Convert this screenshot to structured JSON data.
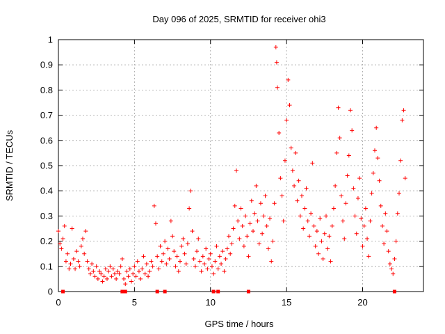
{
  "chart_data": {
    "type": "scatter",
    "title": "Day 096 of 2025, SRMTID for receiver ohi3",
    "xlabel": "GPS time / hours",
    "ylabel": "SRMTID / TECUs",
    "xlim": [
      0,
      24
    ],
    "ylim": [
      0,
      1
    ],
    "xticks": [
      0,
      5,
      10,
      15,
      20
    ],
    "xtick_labels": [
      "0",
      "5",
      "10",
      "15",
      "20"
    ],
    "yticks": [
      0,
      0.1,
      0.2,
      0.3,
      0.4,
      0.5,
      0.6,
      0.7,
      0.8,
      0.9,
      1
    ],
    "ytick_labels": [
      "0",
      "0.1",
      "0.2",
      "0.3",
      "0.4",
      "0.5",
      "0.6",
      "0.7",
      "0.8",
      "0.9",
      "1"
    ],
    "grid": true,
    "marker": "plus",
    "color": "#ff0000",
    "series": [
      {
        "name": "SRMTID",
        "points": [
          [
            0.0,
            0.24
          ],
          [
            0.1,
            0.19
          ],
          [
            0.2,
            0.17
          ],
          [
            0.3,
            0.21
          ],
          [
            0.4,
            0.26
          ],
          [
            0.5,
            0.12
          ],
          [
            0.6,
            0.15
          ],
          [
            0.7,
            0.09
          ],
          [
            0.8,
            0.11
          ],
          [
            0.9,
            0.25
          ],
          [
            1.0,
            0.13
          ],
          [
            1.1,
            0.09
          ],
          [
            1.2,
            0.16
          ],
          [
            1.3,
            0.12
          ],
          [
            1.4,
            0.1
          ],
          [
            1.5,
            0.18
          ],
          [
            1.6,
            0.21
          ],
          [
            1.7,
            0.15
          ],
          [
            1.8,
            0.24
          ],
          [
            1.9,
            0.12
          ],
          [
            2.0,
            0.09
          ],
          [
            2.1,
            0.07
          ],
          [
            2.2,
            0.11
          ],
          [
            2.3,
            0.08
          ],
          [
            2.4,
            0.06
          ],
          [
            2.5,
            0.1
          ],
          [
            2.6,
            0.05
          ],
          [
            2.7,
            0.08
          ],
          [
            2.8,
            0.07
          ],
          [
            2.9,
            0.04
          ],
          [
            3.0,
            0.06
          ],
          [
            3.1,
            0.09
          ],
          [
            3.2,
            0.05
          ],
          [
            3.3,
            0.08
          ],
          [
            3.4,
            0.1
          ],
          [
            3.5,
            0.06
          ],
          [
            3.6,
            0.09
          ],
          [
            3.7,
            0.07
          ],
          [
            3.8,
            0.05
          ],
          [
            3.9,
            0.08
          ],
          [
            4.0,
            0.07
          ],
          [
            4.1,
            0.1
          ],
          [
            4.2,
            0.13
          ],
          [
            4.3,
            0.05
          ],
          [
            4.4,
            0.03
          ],
          [
            4.5,
            0.08
          ],
          [
            4.6,
            0.06
          ],
          [
            4.7,
            0.09
          ],
          [
            4.8,
            0.04
          ],
          [
            4.9,
            0.07
          ],
          [
            5.0,
            0.1
          ],
          [
            5.1,
            0.06
          ],
          [
            5.2,
            0.12
          ],
          [
            5.3,
            0.08
          ],
          [
            5.4,
            0.05
          ],
          [
            5.5,
            0.09
          ],
          [
            5.6,
            0.14
          ],
          [
            5.7,
            0.07
          ],
          [
            5.8,
            0.11
          ],
          [
            5.9,
            0.06
          ],
          [
            6.0,
            0.08
          ],
          [
            6.1,
            0.12
          ],
          [
            6.2,
            0.1
          ],
          [
            6.3,
            0.34
          ],
          [
            6.4,
            0.27
          ],
          [
            6.5,
            0.14
          ],
          [
            6.6,
            0.09
          ],
          [
            6.7,
            0.18
          ],
          [
            6.8,
            0.12
          ],
          [
            6.9,
            0.15
          ],
          [
            7.0,
            0.2
          ],
          [
            7.1,
            0.11
          ],
          [
            7.2,
            0.17
          ],
          [
            7.3,
            0.13
          ],
          [
            7.4,
            0.28
          ],
          [
            7.5,
            0.22
          ],
          [
            7.6,
            0.16
          ],
          [
            7.7,
            0.1
          ],
          [
            7.8,
            0.14
          ],
          [
            7.9,
            0.08
          ],
          [
            8.0,
            0.12
          ],
          [
            8.1,
            0.18
          ],
          [
            8.2,
            0.21
          ],
          [
            8.3,
            0.15
          ],
          [
            8.4,
            0.11
          ],
          [
            8.5,
            0.19
          ],
          [
            8.6,
            0.33
          ],
          [
            8.7,
            0.4
          ],
          [
            8.8,
            0.24
          ],
          [
            8.9,
            0.13
          ],
          [
            9.0,
            0.1
          ],
          [
            9.1,
            0.16
          ],
          [
            9.2,
            0.21
          ],
          [
            9.3,
            0.12
          ],
          [
            9.4,
            0.08
          ],
          [
            9.5,
            0.14
          ],
          [
            9.6,
            0.11
          ],
          [
            9.7,
            0.17
          ],
          [
            9.8,
            0.09
          ],
          [
            9.9,
            0.13
          ],
          [
            10.0,
            0.15
          ],
          [
            10.1,
            0.1
          ],
          [
            10.2,
            0.07
          ],
          [
            10.3,
            0.12
          ],
          [
            10.4,
            0.18
          ],
          [
            10.5,
            0.09
          ],
          [
            10.6,
            0.14
          ],
          [
            10.7,
            0.11
          ],
          [
            10.8,
            0.16
          ],
          [
            10.9,
            0.08
          ],
          [
            11.0,
            0.13
          ],
          [
            11.1,
            0.17
          ],
          [
            11.2,
            0.22
          ],
          [
            11.3,
            0.15
          ],
          [
            11.4,
            0.19
          ],
          [
            11.5,
            0.25
          ],
          [
            11.6,
            0.34
          ],
          [
            11.7,
            0.48
          ],
          [
            11.8,
            0.28
          ],
          [
            11.9,
            0.21
          ],
          [
            12.0,
            0.33
          ],
          [
            12.1,
            0.26
          ],
          [
            12.2,
            0.18
          ],
          [
            12.3,
            0.3
          ],
          [
            12.4,
            0.22
          ],
          [
            12.5,
            0.14
          ],
          [
            12.6,
            0.27
          ],
          [
            12.7,
            0.36
          ],
          [
            12.8,
            0.24
          ],
          [
            12.9,
            0.31
          ],
          [
            13.0,
            0.42
          ],
          [
            13.1,
            0.28
          ],
          [
            13.2,
            0.19
          ],
          [
            13.3,
            0.35
          ],
          [
            13.4,
            0.23
          ],
          [
            13.5,
            0.3
          ],
          [
            13.6,
            0.38
          ],
          [
            13.7,
            0.26
          ],
          [
            13.8,
            0.17
          ],
          [
            13.9,
            0.29
          ],
          [
            14.0,
            0.12
          ],
          [
            14.1,
            0.2
          ],
          [
            14.2,
            0.35
          ],
          [
            14.3,
            0.97
          ],
          [
            14.35,
            0.91
          ],
          [
            14.4,
            0.81
          ],
          [
            14.5,
            0.63
          ],
          [
            14.6,
            0.45
          ],
          [
            14.7,
            0.38
          ],
          [
            14.8,
            0.28
          ],
          [
            14.9,
            0.52
          ],
          [
            15.0,
            0.68
          ],
          [
            15.1,
            0.84
          ],
          [
            15.2,
            0.74
          ],
          [
            15.3,
            0.57
          ],
          [
            15.4,
            0.48
          ],
          [
            15.5,
            0.42
          ],
          [
            15.6,
            0.55
          ],
          [
            15.7,
            0.36
          ],
          [
            15.8,
            0.44
          ],
          [
            15.9,
            0.3
          ],
          [
            16.0,
            0.38
          ],
          [
            16.1,
            0.25
          ],
          [
            16.2,
            0.33
          ],
          [
            16.3,
            0.41
          ],
          [
            16.4,
            0.28
          ],
          [
            16.5,
            0.22
          ],
          [
            16.6,
            0.31
          ],
          [
            16.7,
            0.51
          ],
          [
            16.8,
            0.26
          ],
          [
            16.9,
            0.18
          ],
          [
            17.0,
            0.24
          ],
          [
            17.1,
            0.15
          ],
          [
            17.2,
            0.29
          ],
          [
            17.3,
            0.2
          ],
          [
            17.4,
            0.13
          ],
          [
            17.5,
            0.23
          ],
          [
            17.6,
            0.3
          ],
          [
            17.7,
            0.17
          ],
          [
            17.8,
            0.22
          ],
          [
            17.9,
            0.12
          ],
          [
            18.0,
            0.26
          ],
          [
            18.1,
            0.33
          ],
          [
            18.2,
            0.42
          ],
          [
            18.3,
            0.55
          ],
          [
            18.4,
            0.73
          ],
          [
            18.5,
            0.61
          ],
          [
            18.6,
            0.38
          ],
          [
            18.7,
            0.28
          ],
          [
            18.8,
            0.21
          ],
          [
            18.9,
            0.35
          ],
          [
            19.0,
            0.46
          ],
          [
            19.1,
            0.54
          ],
          [
            19.2,
            0.72
          ],
          [
            19.3,
            0.64
          ],
          [
            19.4,
            0.41
          ],
          [
            19.5,
            0.3
          ],
          [
            19.6,
            0.23
          ],
          [
            19.7,
            0.37
          ],
          [
            19.8,
            0.45
          ],
          [
            19.9,
            0.29
          ],
          [
            20.0,
            0.18
          ],
          [
            20.1,
            0.26
          ],
          [
            20.2,
            0.33
          ],
          [
            20.3,
            0.21
          ],
          [
            20.4,
            0.14
          ],
          [
            20.5,
            0.28
          ],
          [
            20.6,
            0.39
          ],
          [
            20.7,
            0.47
          ],
          [
            20.8,
            0.56
          ],
          [
            20.9,
            0.65
          ],
          [
            21.0,
            0.53
          ],
          [
            21.1,
            0.44
          ],
          [
            21.2,
            0.34
          ],
          [
            21.3,
            0.26
          ],
          [
            21.4,
            0.19
          ],
          [
            21.5,
            0.31
          ],
          [
            21.6,
            0.24
          ],
          [
            21.7,
            0.16
          ],
          [
            21.8,
            0.11
          ],
          [
            21.9,
            0.09
          ],
          [
            22.0,
            0.07
          ],
          [
            22.1,
            0.13
          ],
          [
            22.2,
            0.2
          ],
          [
            22.3,
            0.31
          ],
          [
            22.4,
            0.39
          ],
          [
            22.5,
            0.52
          ],
          [
            22.6,
            0.68
          ],
          [
            22.7,
            0.72
          ],
          [
            22.8,
            0.45
          ]
        ]
      }
    ],
    "markers_at_zero": [
      0.3,
      4.2,
      4.4,
      6.5,
      7.0,
      10.2,
      10.5,
      12.5,
      22.1
    ]
  }
}
